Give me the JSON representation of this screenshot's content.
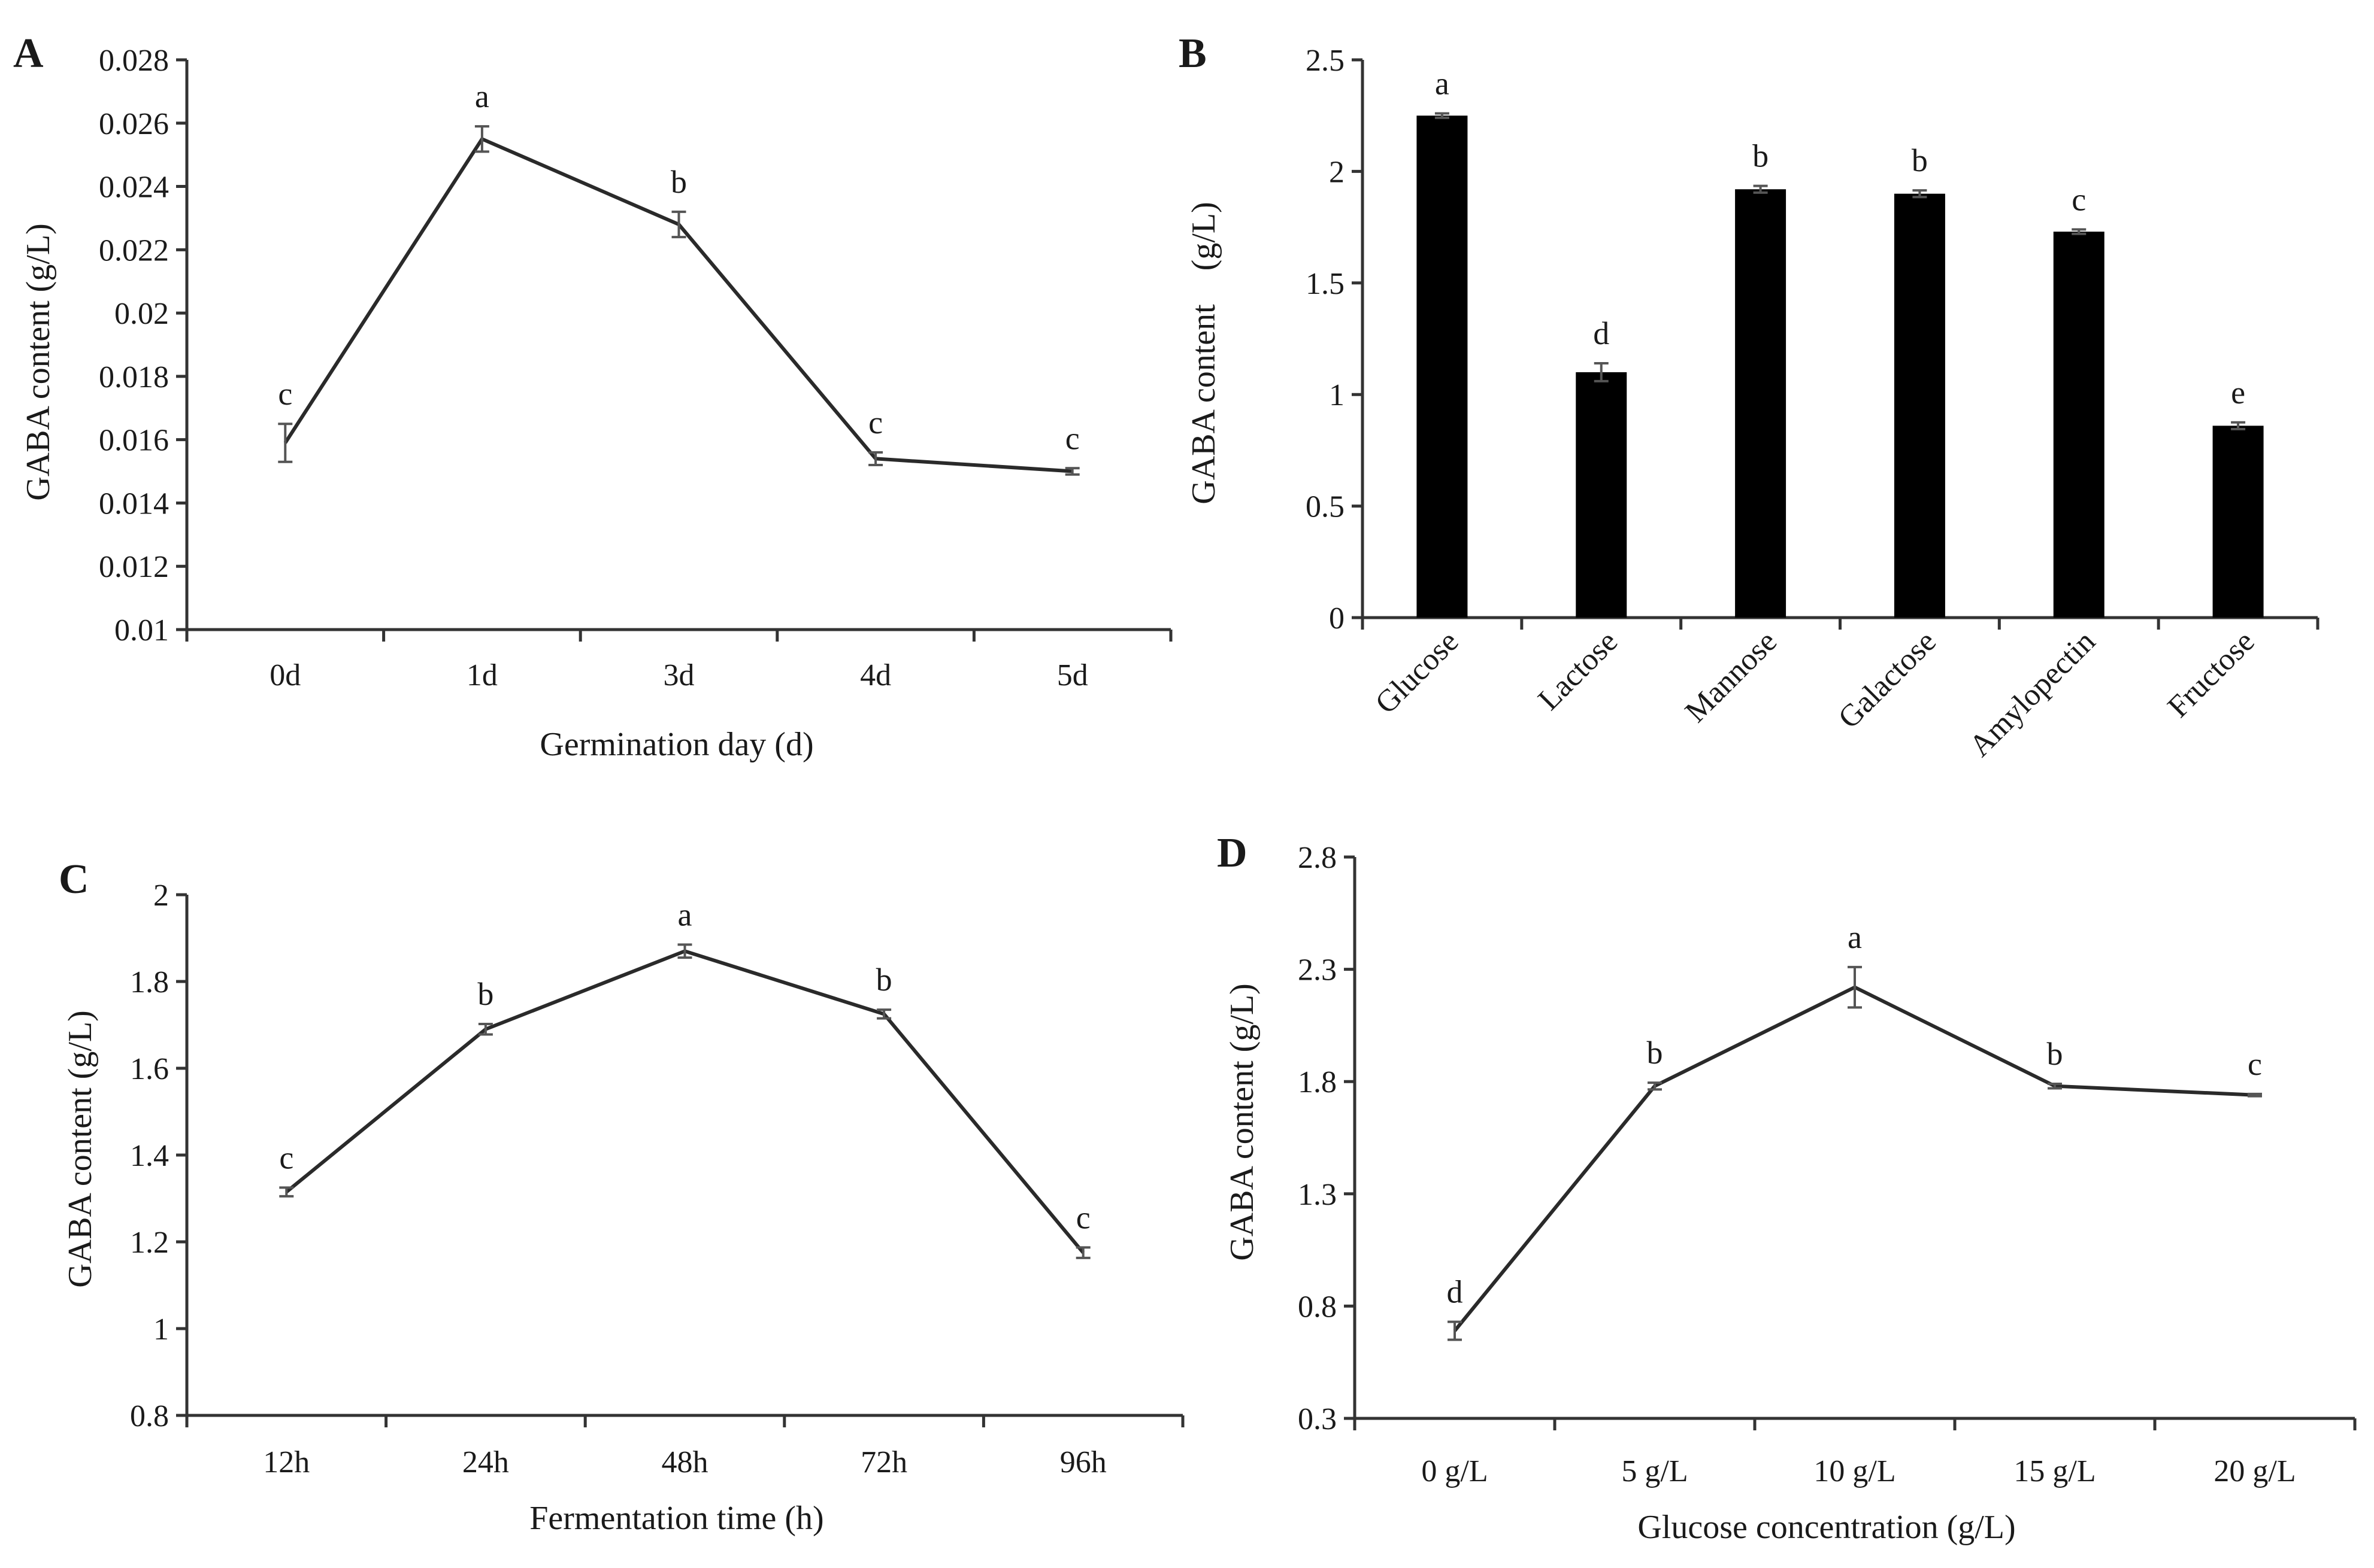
{
  "chart_data": [
    {
      "panel": "A",
      "type": "line",
      "title": "",
      "xlabel": "Germination day (d)",
      "ylabel": "GABA content (g/L)",
      "categories": [
        "0d",
        "1d",
        "3d",
        "4d",
        "5d"
      ],
      "values": [
        0.0159,
        0.0255,
        0.0228,
        0.0154,
        0.015
      ],
      "errors": [
        0.0006,
        0.0004,
        0.0004,
        0.0002,
        0.0001
      ],
      "letters": [
        "c",
        "a",
        "b",
        "c",
        "c"
      ],
      "ylim": [
        0.01,
        0.028
      ],
      "yticks": [
        0.01,
        0.012,
        0.014,
        0.016,
        0.018,
        0.02,
        0.022,
        0.024,
        0.026,
        0.028
      ],
      "yticklabels": [
        "0.01",
        "0.012",
        "0.014",
        "0.016",
        "0.018",
        "0.02",
        "0.022",
        "0.024",
        "0.026",
        "0.028"
      ]
    },
    {
      "panel": "B",
      "type": "bar",
      "title": "",
      "xlabel": "",
      "ylabel": "GABA content　(g/L)",
      "categories": [
        "Glucose",
        "Lactose",
        "Mannose",
        "Galactose",
        "Amylopectin",
        "Fructose"
      ],
      "values": [
        2.25,
        1.1,
        1.92,
        1.9,
        1.73,
        0.86
      ],
      "errors": [
        0.01,
        0.04,
        0.015,
        0.015,
        0.01,
        0.015
      ],
      "letters": [
        "a",
        "d",
        "b",
        "b",
        "c",
        "e"
      ],
      "ylim": [
        0,
        2.5
      ],
      "yticks": [
        0,
        0.5,
        1,
        1.5,
        2,
        2.5
      ],
      "yticklabels": [
        "0",
        "0.5",
        "1",
        "1.5",
        "2",
        "2.5"
      ]
    },
    {
      "panel": "C",
      "type": "line",
      "title": "",
      "xlabel": "Fermentation time (h)",
      "ylabel": "GABA content  (g/L)",
      "categories": [
        "12h",
        "24h",
        "48h",
        "72h",
        "96h"
      ],
      "values": [
        1.315,
        1.69,
        1.87,
        1.725,
        1.175
      ],
      "errors": [
        0.01,
        0.012,
        0.015,
        0.01,
        0.012
      ],
      "letters": [
        "c",
        "b",
        "a",
        "b",
        "c"
      ],
      "ylim": [
        0.8,
        2.0
      ],
      "yticks": [
        0.8,
        1.0,
        1.2,
        1.4,
        1.6,
        1.8,
        2.0
      ],
      "yticklabels": [
        "0.8",
        "1",
        "1.2",
        "1.4",
        "1.6",
        "1.8",
        "2"
      ]
    },
    {
      "panel": "D",
      "type": "line",
      "title": "",
      "xlabel": "Glucose concentration (g/L)",
      "ylabel": "GABA content (g/L)",
      "categories": [
        "0 g/L",
        "5 g/L",
        "10 g/L",
        "15 g/L",
        "20 g/L"
      ],
      "values": [
        0.69,
        1.78,
        2.22,
        1.78,
        1.74
      ],
      "errors": [
        0.04,
        0.015,
        0.09,
        0.01,
        0.005
      ],
      "letters": [
        "d",
        "b",
        "a",
        "b",
        "c"
      ],
      "ylim": [
        0.3,
        2.8
      ],
      "yticks": [
        0.3,
        0.8,
        1.3,
        1.8,
        2.3,
        2.8
      ],
      "yticklabels": [
        "0.3",
        "0.8",
        "1.3",
        "1.8",
        "2.3",
        "2.8"
      ]
    }
  ]
}
